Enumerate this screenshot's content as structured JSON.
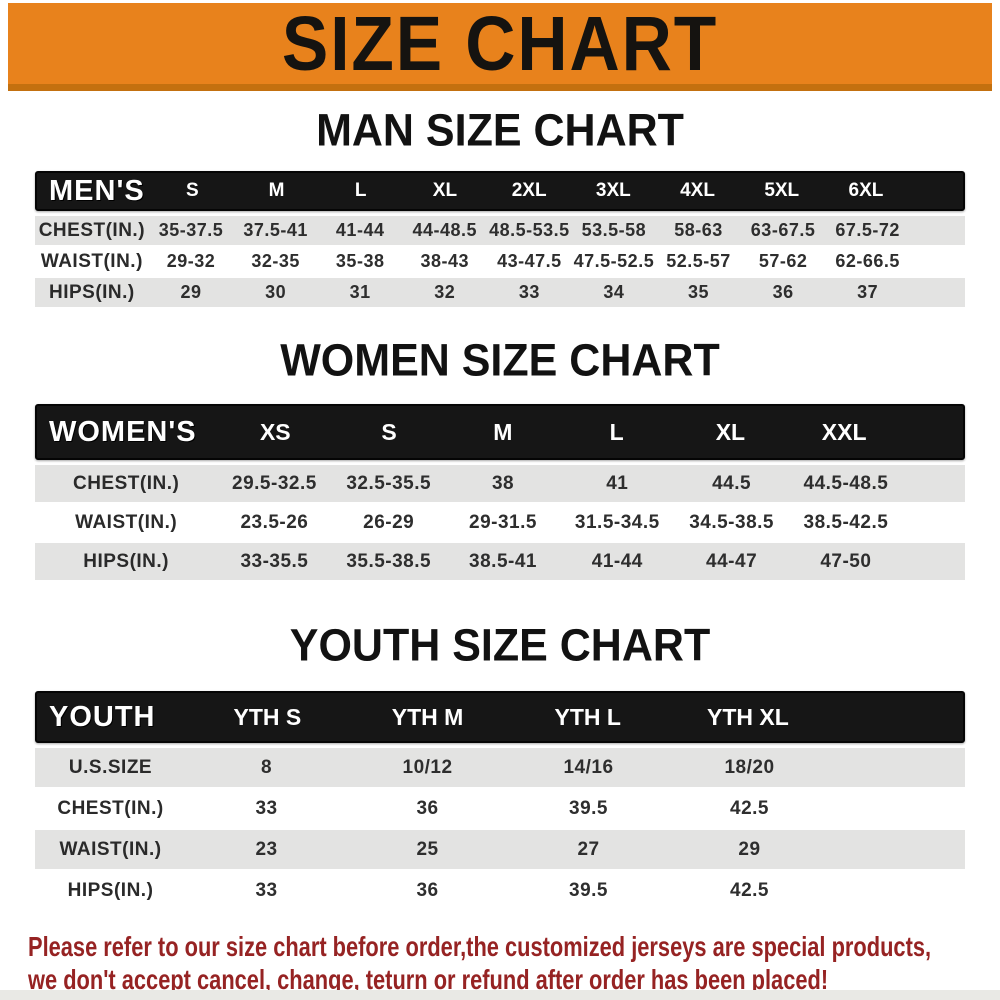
{
  "banner": {
    "title": "SIZE CHART",
    "bg_color": "#e8821c",
    "border_color": "#c3700f"
  },
  "sections": [
    {
      "title": "MAN SIZE CHART",
      "header": {
        "label": "MEN'S",
        "columns": [
          "S",
          "M",
          "L",
          "XL",
          "2XL",
          "3XL",
          "4XL",
          "5XL",
          "6XL"
        ]
      },
      "rows": [
        {
          "label": "CHEST(IN.)",
          "values": [
            "35-37.5",
            "37.5-41",
            "41-44",
            "44-48.5",
            "48.5-53.5",
            "53.5-58",
            "58-63",
            "63-67.5",
            "67.5-72"
          ]
        },
        {
          "label": "WAIST(IN.)",
          "values": [
            "29-32",
            "32-35",
            "35-38",
            "38-43",
            "43-47.5",
            "47.5-52.5",
            "52.5-57",
            "57-62",
            "62-66.5"
          ]
        },
        {
          "label": "HIPS(IN.)",
          "values": [
            "29",
            "30",
            "31",
            "32",
            "33",
            "34",
            "35",
            "36",
            "37"
          ]
        }
      ]
    },
    {
      "title": "WOMEN SIZE CHART",
      "header": {
        "label": "WOMEN'S",
        "columns": [
          "XS",
          "S",
          "M",
          "L",
          "XL",
          "XXL"
        ]
      },
      "rows": [
        {
          "label": "CHEST(IN.)",
          "values": [
            "29.5-32.5",
            "32.5-35.5",
            "38",
            "41",
            "44.5",
            "44.5-48.5"
          ]
        },
        {
          "label": "WAIST(IN.)",
          "values": [
            "23.5-26",
            "26-29",
            "29-31.5",
            "31.5-34.5",
            "34.5-38.5",
            "38.5-42.5"
          ]
        },
        {
          "label": "HIPS(IN.)",
          "values": [
            "33-35.5",
            "35.5-38.5",
            "38.5-41",
            "41-44",
            "44-47",
            "47-50"
          ]
        }
      ]
    },
    {
      "title": "YOUTH SIZE CHART",
      "header": {
        "label": "YOUTH",
        "columns": [
          "YTH S",
          "YTH M",
          "YTH L",
          "YTH XL"
        ]
      },
      "rows": [
        {
          "label": "U.S.SIZE",
          "values": [
            "8",
            "10/12",
            "14/16",
            "18/20"
          ]
        },
        {
          "label": "CHEST(IN.)",
          "values": [
            "33",
            "36",
            "39.5",
            "42.5"
          ]
        },
        {
          "label": "WAIST(IN.)",
          "values": [
            "23",
            "25",
            "27",
            "29"
          ]
        },
        {
          "label": "HIPS(IN.)",
          "values": [
            "33",
            "36",
            "39.5",
            "42.5"
          ]
        }
      ]
    }
  ],
  "footer": {
    "line1": "Please refer to our size chart before order,the customized jerseys are special products,",
    "line2": "we don't accept cancel, change, teturn or refund after order has been placed!",
    "text_color": "#962323"
  }
}
